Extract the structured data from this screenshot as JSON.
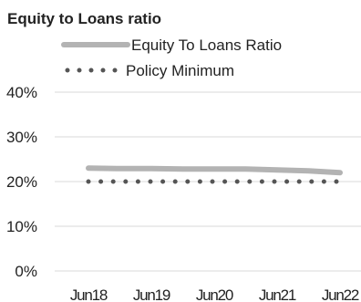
{
  "chart_data": {
    "type": "line",
    "title": "Equity to Loans ratio",
    "categories": [
      "Jun18",
      "Jun19",
      "Jun20",
      "Jun21",
      "Jun22"
    ],
    "y_ticks": [
      "0%",
      "10%",
      "20%",
      "30%",
      "40%"
    ],
    "ylim": [
      0,
      40
    ],
    "grid": true,
    "legend_position": "top",
    "series": [
      {
        "name": "Equity To Loans Ratio",
        "style": "solid",
        "color": "#b3b3b3",
        "x": [
          0,
          0.5,
          1,
          1.5,
          2,
          2.5,
          3,
          3.5,
          4
        ],
        "values": [
          23.0,
          22.9,
          22.9,
          22.8,
          22.8,
          22.8,
          22.6,
          22.4,
          22.0
        ]
      },
      {
        "name": "Policy Minimum",
        "style": "dotted",
        "color": "#555555",
        "x": [
          0,
          4
        ],
        "values": [
          20,
          20
        ]
      }
    ]
  }
}
